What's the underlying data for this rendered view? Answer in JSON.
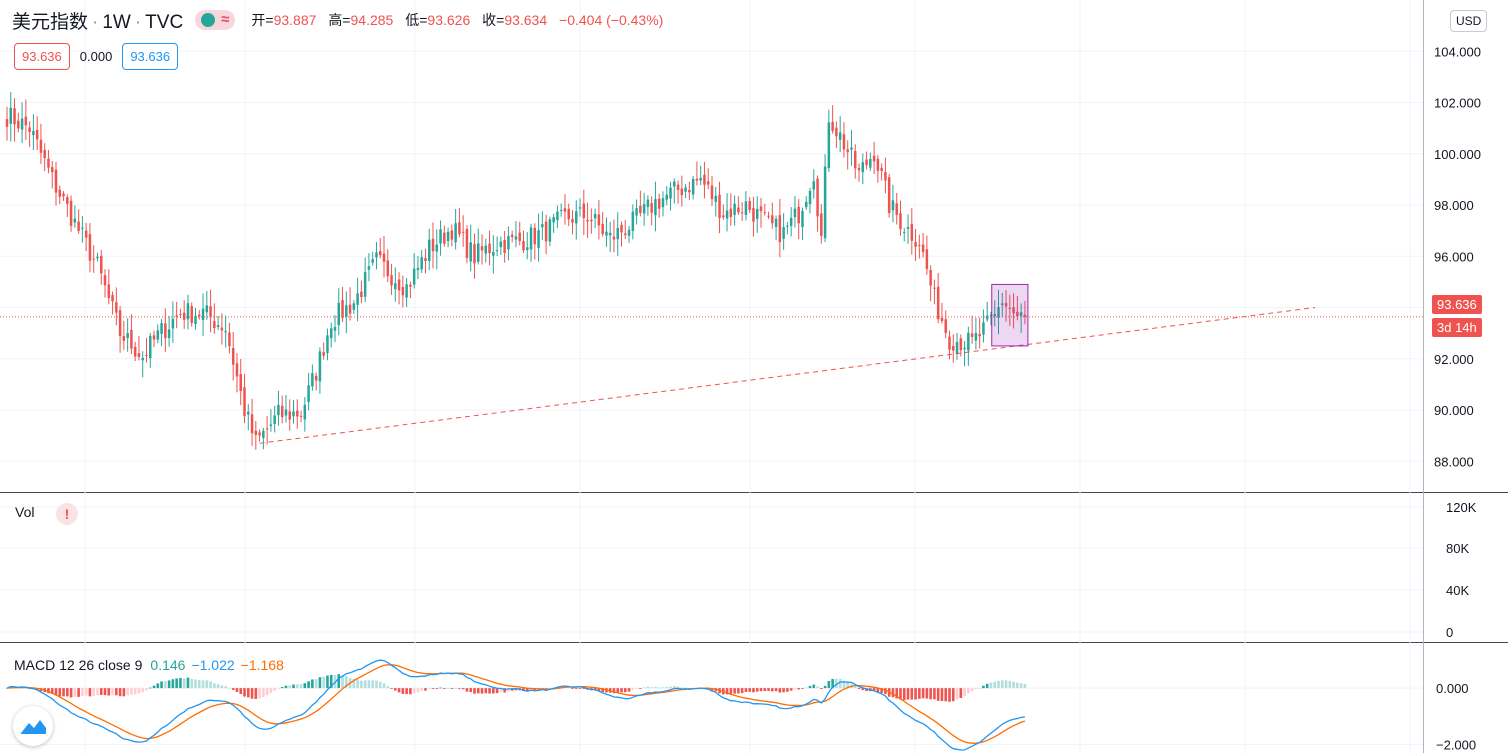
{
  "header": {
    "symbol": "美元指数",
    "interval": "1W",
    "source": "TVC",
    "ohlc": {
      "open_label": "开=",
      "open": "93.887",
      "high_label": "高=",
      "high": "94.285",
      "low_label": "低=",
      "low": "93.626",
      "close_label": "收=",
      "close": "93.634",
      "change": "−0.404 (−0.43%)"
    },
    "price_box_1": "93.636",
    "spread": "0.000",
    "price_box_2": "93.636",
    "currency": "USD"
  },
  "last_price_label": "93.636",
  "countdown_label": "3d 14h",
  "colors": {
    "up": "#26a69a",
    "down": "#ef5350",
    "macd": "#2196f3",
    "signal": "#ff6d00"
  },
  "volume_panel": {
    "label": "Vol",
    "warning": "!",
    "ticks": [
      "120K",
      "80K",
      "40K",
      "0"
    ]
  },
  "macd_panel": {
    "label": "MACD 12 26 close 9",
    "hist_value": "0.146",
    "macd_value": "−1.022",
    "signal_value": "−1.168",
    "ticks": [
      "0.000",
      "−2.000"
    ]
  },
  "chart_data": [
    {
      "type": "candlestick",
      "title": "美元指数 · 1W · TVC",
      "ylim": [
        86.8,
        106.0
      ],
      "y_ticks": [
        88,
        90,
        92,
        94,
        96,
        98,
        100,
        102,
        104
      ],
      "y_tick_labels": [
        "88.000",
        "90.000",
        "92.000",
        "94.000",
        "96.000",
        "98.000",
        "100.000",
        "102.000",
        "104.000"
      ],
      "last_price": 93.636,
      "trendline": {
        "from": 88.7,
        "to": 94.0,
        "style": "dashed"
      },
      "highlight": {
        "y_range": [
          92.5,
          94.9
        ]
      },
      "grid": true,
      "anchors": [
        [
          0,
          101.5
        ],
        [
          6,
          101.0
        ],
        [
          12,
          99.0
        ],
        [
          18,
          97.3
        ],
        [
          24,
          95.6
        ],
        [
          30,
          93.0
        ],
        [
          36,
          92.1
        ],
        [
          40,
          92.9
        ],
        [
          46,
          93.8
        ],
        [
          52,
          93.8
        ],
        [
          58,
          93.2
        ],
        [
          63,
          90.0
        ],
        [
          66,
          88.7
        ],
        [
          72,
          89.8
        ],
        [
          78,
          89.9
        ],
        [
          82,
          91.5
        ],
        [
          86,
          93.5
        ],
        [
          92,
          94.2
        ],
        [
          98,
          95.8
        ],
        [
          106,
          94.8
        ],
        [
          112,
          96.3
        ],
        [
          118,
          97.1
        ],
        [
          124,
          96.0
        ],
        [
          130,
          96.5
        ],
        [
          136,
          96.6
        ],
        [
          142,
          96.9
        ],
        [
          148,
          97.5
        ],
        [
          154,
          97.6
        ],
        [
          160,
          96.7
        ],
        [
          166,
          97.3
        ],
        [
          172,
          98.1
        ],
        [
          178,
          98.6
        ],
        [
          184,
          99.0
        ],
        [
          190,
          97.7
        ],
        [
          196,
          98.0
        ],
        [
          202,
          97.2
        ],
        [
          206,
          96.9
        ],
        [
          210,
          97.7
        ],
        [
          214,
          99.3
        ],
        [
          216,
          96.7
        ],
        [
          218,
          101.5
        ],
        [
          222,
          100.4
        ],
        [
          226,
          99.2
        ],
        [
          230,
          100.1
        ],
        [
          234,
          98.0
        ],
        [
          238,
          97.2
        ],
        [
          242,
          96.6
        ],
        [
          246,
          94.3
        ],
        [
          250,
          92.8
        ],
        [
          256,
          92.6
        ],
        [
          262,
          93.6
        ],
        [
          264,
          94.3
        ],
        [
          268,
          93.6
        ],
        [
          270,
          93.63
        ]
      ]
    },
    {
      "type": "bar",
      "title": "Vol",
      "ylim": [
        0,
        120000
      ],
      "y_tick_labels": [
        "120K",
        "80K",
        "40K",
        "0"
      ],
      "values": []
    },
    {
      "type": "line",
      "title": "MACD 12 26 close 9",
      "series": [
        {
          "name": "histogram",
          "last": 0.146
        },
        {
          "name": "MACD",
          "last": -1.022
        },
        {
          "name": "signal",
          "last": -1.168
        }
      ],
      "ylim": [
        -2.3,
        1.6
      ],
      "y_tick_labels": [
        "0.000",
        "−2.000"
      ]
    }
  ]
}
